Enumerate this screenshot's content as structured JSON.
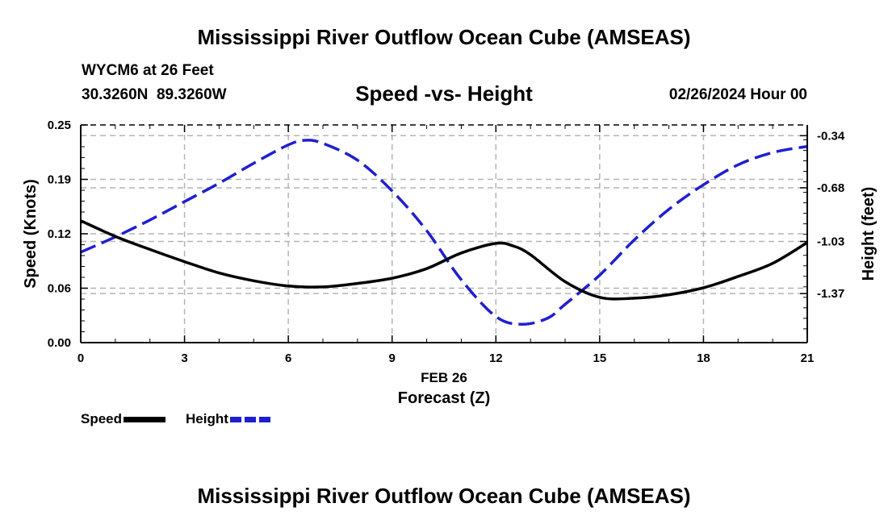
{
  "title": "Mississippi River Outflow Ocean Cube (AMSEAS)",
  "footer_title": "Mississippi River Outflow Ocean Cube (AMSEAS)",
  "station": "WYCM6 at 26 Feet",
  "coords": "30.3260N  89.3260W",
  "date": "02/26/2024 Hour 00",
  "colors": {
    "speed": "#000000",
    "height": "#1f1fd0",
    "grid": "#b4b4b4"
  },
  "chart_data": {
    "type": "line",
    "title": "Speed -vs- Height",
    "xlabel": "Forecast (Z)",
    "xdate_label": "FEB 26",
    "ylabel": "Speed (Knots)",
    "y2label": "Height (feet)",
    "xlim": [
      0,
      21
    ],
    "ylim": [
      0,
      0.25
    ],
    "y2lim": [
      -1.69,
      -0.27
    ],
    "x_ticks": [
      0,
      3,
      6,
      9,
      12,
      15,
      18,
      21
    ],
    "x_tick_labels": [
      "0",
      "3",
      "6",
      "9",
      "12",
      "15",
      "18",
      "21"
    ],
    "y_ticks": [
      0.0,
      0.0625,
      0.125,
      0.1875,
      0.25
    ],
    "y_tick_labels": [
      "0.00",
      "0.06",
      "0.12",
      "0.19",
      "0.25"
    ],
    "y2_ticks": [
      -1.37,
      -1.03,
      -0.68,
      -0.34
    ],
    "y2_tick_labels": [
      "-1.37",
      "-1.03",
      "-0.68",
      "-0.34"
    ],
    "grid": true,
    "series": [
      {
        "name": "Speed",
        "axis": "left",
        "style": "solid",
        "x": [
          0,
          1,
          2,
          3,
          4,
          5,
          6,
          7,
          8,
          9,
          10,
          11,
          12,
          12.5,
          13,
          14,
          15,
          16,
          17,
          18,
          19,
          20,
          21
        ],
        "values": [
          0.14,
          0.122,
          0.107,
          0.093,
          0.08,
          0.071,
          0.065,
          0.064,
          0.068,
          0.074,
          0.085,
          0.103,
          0.114,
          0.111,
          0.101,
          0.07,
          0.052,
          0.051,
          0.055,
          0.063,
          0.076,
          0.091,
          0.115
        ]
      },
      {
        "name": "Height",
        "axis": "right",
        "style": "dashed",
        "x": [
          0,
          1,
          2,
          3,
          4,
          5,
          6,
          6.5,
          7,
          8,
          9,
          10,
          11,
          12,
          12.75,
          13.5,
          14,
          15,
          16,
          17,
          18,
          19,
          20,
          21
        ],
        "values": [
          -1.1,
          -1.0,
          -0.89,
          -0.77,
          -0.65,
          -0.52,
          -0.4,
          -0.37,
          -0.39,
          -0.5,
          -0.7,
          -0.96,
          -1.28,
          -1.52,
          -1.57,
          -1.53,
          -1.44,
          -1.25,
          -1.02,
          -0.82,
          -0.66,
          -0.53,
          -0.45,
          -0.41
        ]
      }
    ],
    "legend": [
      "Speed",
      "Height"
    ]
  }
}
